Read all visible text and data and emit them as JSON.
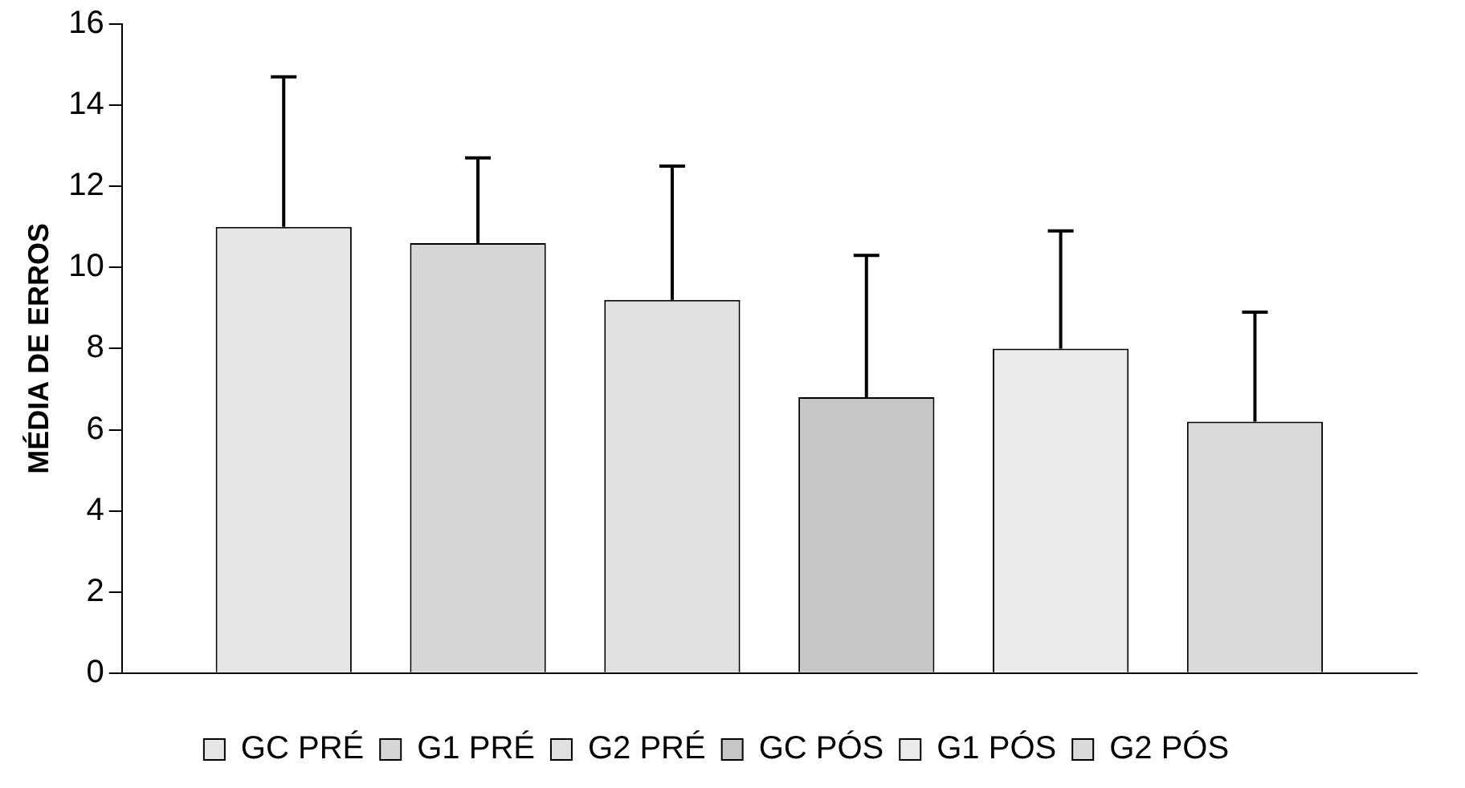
{
  "chart_data": {
    "type": "bar",
    "ylabel": "MÉDIA DE ERROS",
    "categories": [
      null
    ],
    "series": [
      {
        "name": "GC PRÉ",
        "color": "#e6e6e6",
        "values": [
          11.0
        ],
        "errors": [
          [
            11.0,
            14.7
          ]
        ]
      },
      {
        "name": "G1 PRÉ",
        "color": "#d6d6d6",
        "values": [
          10.6
        ],
        "errors": [
          [
            10.6,
            12.7
          ]
        ]
      },
      {
        "name": "G2 PRÉ",
        "color": "#e0e0e0",
        "values": [
          9.2
        ],
        "errors": [
          [
            9.2,
            12.5
          ]
        ]
      },
      {
        "name": "GC PÓS",
        "color": "#c6c6c6",
        "values": [
          6.8
        ],
        "errors": [
          [
            6.8,
            10.3
          ]
        ]
      },
      {
        "name": "G1 PÓS",
        "color": "#ebebeb",
        "values": [
          8.0
        ],
        "errors": [
          [
            8.0,
            10.9
          ]
        ]
      },
      {
        "name": "G2 PÓS",
        "color": "#dadada",
        "values": [
          6.2
        ],
        "errors": [
          [
            6.2,
            8.9
          ]
        ]
      }
    ],
    "ylim": [
      0,
      16
    ],
    "yticks": [
      0,
      2,
      4,
      6,
      8,
      10,
      12,
      14,
      16
    ],
    "grid": false,
    "legend": "bottom"
  }
}
